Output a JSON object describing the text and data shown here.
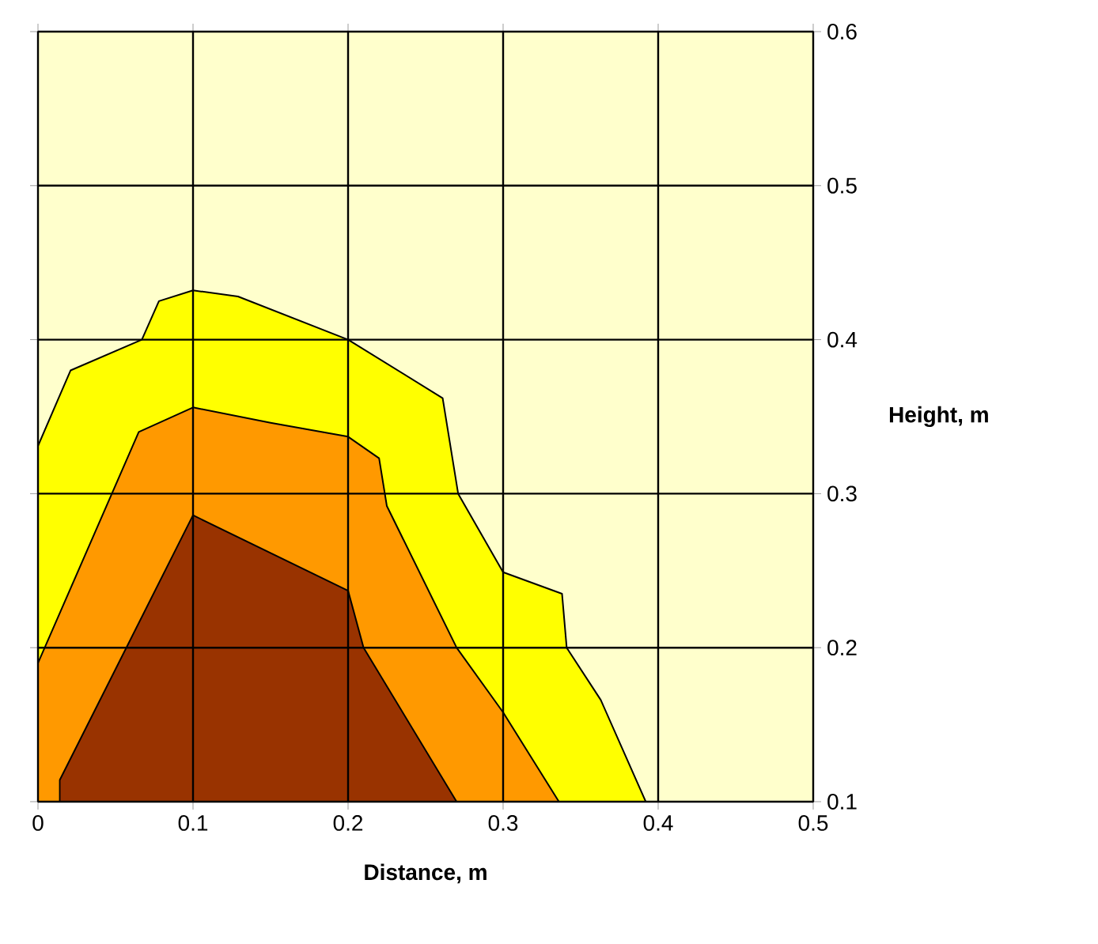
{
  "chart_data": {
    "type": "area",
    "xlabel": "Distance, m",
    "ylabel": "Height, m",
    "xlim": [
      0,
      0.5
    ],
    "ylim": [
      0.1,
      0.6
    ],
    "xticks": [
      0,
      0.1,
      0.2,
      0.3,
      0.4,
      0.5
    ],
    "yticks": [
      0.1,
      0.2,
      0.3,
      0.4,
      0.5,
      0.6
    ],
    "grid": true,
    "series": [
      {
        "color": "#ffff00",
        "x": [
          0,
          0,
          0.021,
          0.067,
          0.078,
          0.1,
          0.129,
          0.2,
          0.261,
          0.271,
          0.3,
          0.338,
          0.341,
          0.363,
          0.392
        ],
        "values": [
          0.1,
          0.331,
          0.38,
          0.4,
          0.425,
          0.432,
          0.428,
          0.4,
          0.362,
          0.3,
          0.249,
          0.235,
          0.2,
          0.166,
          0.1
        ]
      },
      {
        "color": "#ff9900",
        "x": [
          0,
          0,
          0.065,
          0.1,
          0.15,
          0.2,
          0.22,
          0.225,
          0.27,
          0.3,
          0.336
        ],
        "values": [
          0.1,
          0.19,
          0.34,
          0.356,
          0.346,
          0.337,
          0.323,
          0.292,
          0.2,
          0.158,
          0.1
        ]
      },
      {
        "color": "#993300",
        "x": [
          0.014,
          0.014,
          0.1,
          0.2,
          0.21,
          0.27
        ],
        "values": [
          0.1,
          0.114,
          0.286,
          0.237,
          0.2,
          0.1
        ]
      }
    ]
  }
}
